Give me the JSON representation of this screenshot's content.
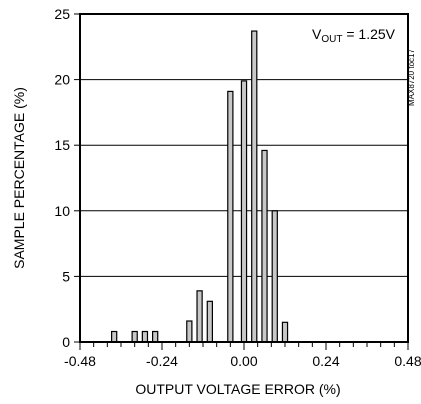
{
  "chart_data": {
    "type": "bar",
    "title": "",
    "xlabel": "OUTPUT VOLTAGE ERROR (%)",
    "ylabel": "SAMPLE PERCENTAGE (%)",
    "xlim": [
      -0.48,
      0.48
    ],
    "ylim": [
      0,
      25
    ],
    "x_tick_labels": [
      "-0.48",
      "-0.24",
      "0.00",
      "0.24",
      "0.48"
    ],
    "x_tick_values": [
      -0.48,
      -0.24,
      0.0,
      0.24,
      0.48
    ],
    "x_minor_step": 0.04,
    "y_tick_labels": [
      "0",
      "5",
      "10",
      "15",
      "20",
      "25"
    ],
    "y_tick_values": [
      0,
      5,
      10,
      15,
      20,
      25
    ],
    "grid": "horizontal",
    "bar_width": 0.015,
    "bar_color": "#c8c8c8",
    "bar_edge_color": "#000000",
    "bars": [
      {
        "x": -0.38,
        "y": 0.8
      },
      {
        "x": -0.32,
        "y": 0.8
      },
      {
        "x": -0.29,
        "y": 0.8
      },
      {
        "x": -0.26,
        "y": 0.8
      },
      {
        "x": -0.16,
        "y": 1.6
      },
      {
        "x": -0.13,
        "y": 3.9
      },
      {
        "x": -0.1,
        "y": 3.1
      },
      {
        "x": -0.04,
        "y": 19.1
      },
      {
        "x": 0.0,
        "y": 19.9
      },
      {
        "x": 0.03,
        "y": 23.7
      },
      {
        "x": 0.06,
        "y": 14.6
      },
      {
        "x": 0.09,
        "y": 10.0
      },
      {
        "x": 0.12,
        "y": 1.5
      }
    ],
    "annotation": {
      "main": "V",
      "sub": "OUT",
      "rest": " = 1.25V"
    },
    "watermark": "MAX8720 toc17"
  }
}
